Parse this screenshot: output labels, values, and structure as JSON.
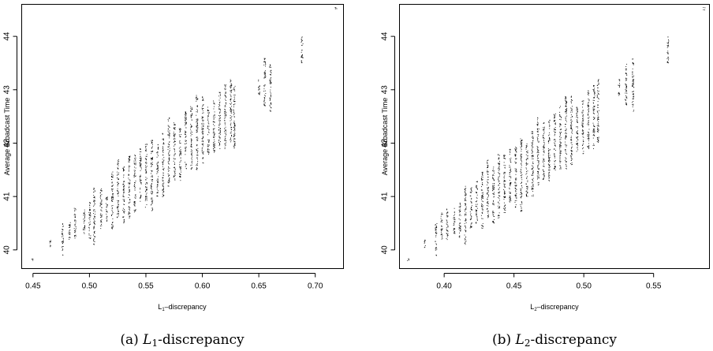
{
  "chart_data": [
    {
      "type": "scatter",
      "panel": "a",
      "caption": {
        "label": "(a)",
        "symbol": "L",
        "subscript": "1",
        "suffix": "-discrepancy"
      },
      "xlabel": {
        "prefix": "L",
        "subscript": "1",
        "suffix": "–discrepancy"
      },
      "ylabel": "Average Broadcast Time",
      "xlim": [
        0.44,
        0.725
      ],
      "ylim": [
        39.65,
        44.6
      ],
      "xticks": [
        0.45,
        0.5,
        0.55,
        0.6,
        0.65,
        0.7
      ],
      "xtick_labels": [
        "0.45",
        "0.50",
        "0.55",
        "0.60",
        "0.65",
        "0.70"
      ],
      "yticks": [
        40,
        41,
        42,
        43,
        44
      ],
      "ytick_labels": [
        "40",
        "41",
        "42",
        "43",
        "44"
      ],
      "grid": false,
      "legend": "none",
      "clusters": [
        [
          0.449,
          39.8,
          39.85
        ],
        [
          0.465,
          40.05,
          40.2
        ],
        [
          0.476,
          39.9,
          40.5
        ],
        [
          0.482,
          40.2,
          40.6
        ],
        [
          0.487,
          40.2,
          40.8
        ],
        [
          0.495,
          40.3,
          40.8
        ],
        [
          0.5,
          40.2,
          40.9
        ],
        [
          0.504,
          40.1,
          41.2
        ],
        [
          0.51,
          40.4,
          41.2
        ],
        [
          0.515,
          40.5,
          41.0
        ],
        [
          0.52,
          40.4,
          41.5
        ],
        [
          0.525,
          40.6,
          41.7
        ],
        [
          0.53,
          40.5,
          41.6
        ],
        [
          0.535,
          40.6,
          41.8
        ],
        [
          0.54,
          40.7,
          41.8
        ],
        [
          0.545,
          40.9,
          41.9
        ],
        [
          0.55,
          40.8,
          42.0
        ],
        [
          0.555,
          40.7,
          42.1
        ],
        [
          0.56,
          41.0,
          42.0
        ],
        [
          0.565,
          41.0,
          42.2
        ],
        [
          0.57,
          41.2,
          42.5
        ],
        [
          0.575,
          41.3,
          42.4
        ],
        [
          0.58,
          41.3,
          42.3
        ],
        [
          0.585,
          41.5,
          42.6
        ],
        [
          0.59,
          41.5,
          42.7
        ],
        [
          0.595,
          41.5,
          42.9
        ],
        [
          0.6,
          41.6,
          42.9
        ],
        [
          0.605,
          41.8,
          42.7
        ],
        [
          0.61,
          41.8,
          42.8
        ],
        [
          0.615,
          41.9,
          43.0
        ],
        [
          0.62,
          41.9,
          43.1
        ],
        [
          0.625,
          42.0,
          43.2
        ],
        [
          0.628,
          41.9,
          43.1
        ],
        [
          0.65,
          42.9,
          43.2
        ],
        [
          0.655,
          42.7,
          43.6
        ],
        [
          0.66,
          42.6,
          43.5
        ],
        [
          0.688,
          43.5,
          44.0
        ],
        [
          0.718,
          44.5,
          44.55
        ]
      ]
    },
    {
      "type": "scatter",
      "panel": "b",
      "caption": {
        "label": "(b)",
        "symbol": "L",
        "subscript": "2",
        "suffix": "-discrepancy"
      },
      "xlabel": {
        "prefix": "L",
        "subscript": "2",
        "suffix": "–discrepancy"
      },
      "ylabel": "Average Broadcast Time",
      "xlim": [
        0.368,
        0.59
      ],
      "ylim": [
        39.65,
        44.6
      ],
      "xticks": [
        0.4,
        0.45,
        0.5,
        0.55
      ],
      "xtick_labels": [
        "0.40",
        "0.45",
        "0.50",
        "0.55"
      ],
      "yticks": [
        40,
        41,
        42,
        43,
        44
      ],
      "ytick_labels": [
        "40",
        "41",
        "42",
        "43",
        "44"
      ],
      "grid": false,
      "legend": "none",
      "clusters": [
        [
          0.374,
          39.8,
          39.85
        ],
        [
          0.386,
          40.05,
          40.2
        ],
        [
          0.394,
          39.9,
          40.5
        ],
        [
          0.398,
          40.2,
          40.7
        ],
        [
          0.402,
          40.2,
          40.8
        ],
        [
          0.407,
          40.3,
          40.8
        ],
        [
          0.411,
          40.2,
          40.9
        ],
        [
          0.415,
          40.1,
          41.2
        ],
        [
          0.419,
          40.4,
          41.2
        ],
        [
          0.423,
          40.5,
          41.3
        ],
        [
          0.427,
          40.4,
          41.5
        ],
        [
          0.431,
          40.6,
          41.7
        ],
        [
          0.435,
          40.5,
          41.6
        ],
        [
          0.439,
          40.6,
          41.8
        ],
        [
          0.443,
          40.7,
          41.8
        ],
        [
          0.447,
          40.9,
          41.9
        ],
        [
          0.451,
          40.8,
          42.0
        ],
        [
          0.455,
          40.7,
          42.1
        ],
        [
          0.459,
          41.0,
          42.0
        ],
        [
          0.463,
          41.0,
          42.3
        ],
        [
          0.467,
          41.2,
          42.5
        ],
        [
          0.471,
          41.3,
          42.4
        ],
        [
          0.475,
          41.3,
          42.5
        ],
        [
          0.479,
          41.5,
          42.6
        ],
        [
          0.483,
          41.5,
          42.7
        ],
        [
          0.487,
          41.5,
          42.9
        ],
        [
          0.491,
          41.6,
          42.9
        ],
        [
          0.495,
          41.8,
          42.7
        ],
        [
          0.499,
          41.8,
          42.8
        ],
        [
          0.503,
          41.9,
          43.0
        ],
        [
          0.507,
          41.9,
          43.1
        ],
        [
          0.51,
          42.0,
          43.2
        ],
        [
          0.525,
          42.9,
          43.2
        ],
        [
          0.53,
          42.7,
          43.5
        ],
        [
          0.535,
          42.6,
          43.6
        ],
        [
          0.56,
          43.5,
          44.0
        ],
        [
          0.586,
          44.5,
          44.55
        ]
      ]
    }
  ]
}
